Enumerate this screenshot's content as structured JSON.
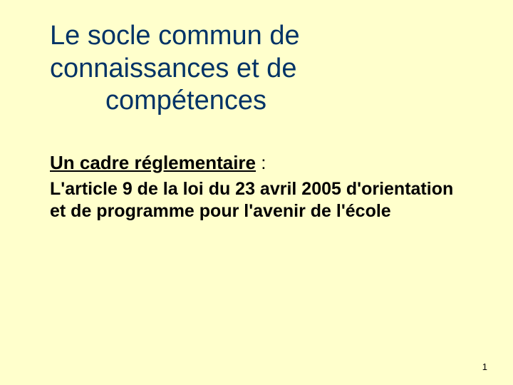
{
  "slide": {
    "background_color": "#ffffcc",
    "title": {
      "line1": "Le socle commun de",
      "line2": "connaissances et de",
      "line3": "compétences",
      "color": "#003366",
      "fontsize": 38,
      "font_weight": "normal"
    },
    "subtitle": {
      "text": "Un cadre réglementaire",
      "colon": " :",
      "color": "#000000",
      "fontsize": 26,
      "font_weight": "bold",
      "underline": true
    },
    "body": {
      "text": "L'article 9 de la loi du 23 avril 2005 d'orientation et de programme pour l'avenir de l'école",
      "color": "#000000",
      "fontsize": 25,
      "font_weight": "bold"
    },
    "page_number": "1"
  }
}
